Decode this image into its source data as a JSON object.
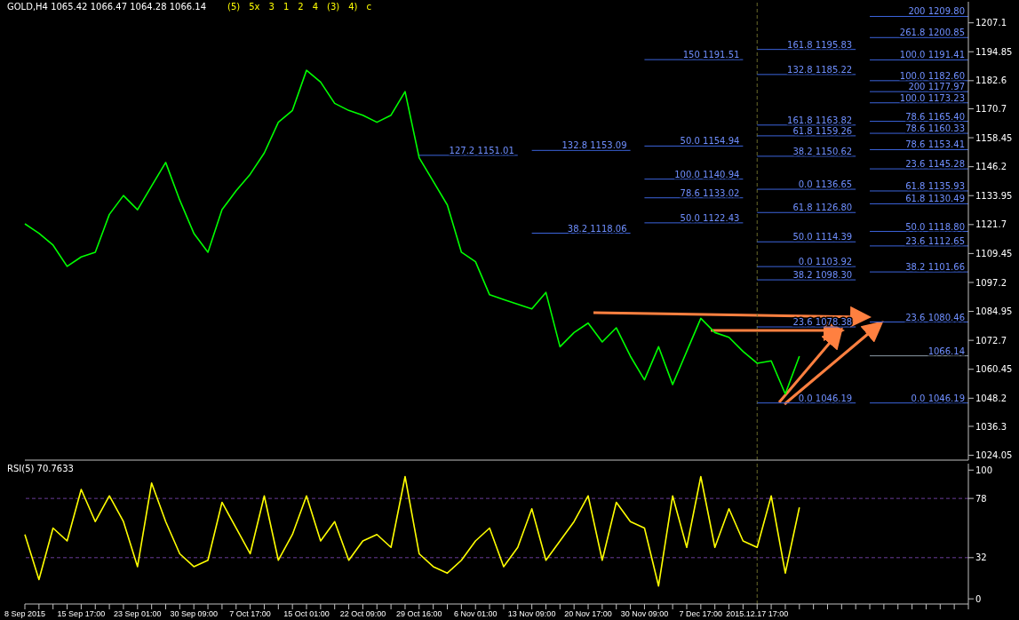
{
  "chart_data": [
    {
      "type": "line",
      "title": "GOLD,H4 1065.42 1066.47 1064.28 1066.14",
      "categories": [
        "8 Sep 2015",
        null,
        null,
        null,
        "15 Sep 17:00",
        null,
        null,
        null,
        "23 Sep 01:00",
        null,
        null,
        null,
        "30 Sep 09:00",
        null,
        null,
        null,
        "7 Oct 17:00",
        null,
        null,
        null,
        "15 Oct 01:00",
        null,
        null,
        null,
        "22 Oct 09:00",
        null,
        null,
        null,
        "29 Oct 16:00",
        null,
        null,
        null,
        "6 Nov 01:00",
        null,
        null,
        null,
        "13 Nov 09:00",
        null,
        null,
        null,
        "20 Nov 17:00",
        null,
        null,
        null,
        "30 Nov 09:00",
        null,
        null,
        null,
        "7 Dec 17:00",
        null,
        null,
        null,
        "2015.12.17 17:00",
        null,
        null,
        null,
        null,
        null,
        null,
        null,
        null,
        null,
        null,
        null,
        null,
        null,
        null,
        null
      ],
      "series": [
        {
          "color": "#00ff00",
          "values": [
            1122,
            1118,
            1113,
            1104,
            1108,
            1110,
            1126,
            1134,
            1128,
            1138,
            1148,
            1132,
            1118,
            1110,
            1128,
            1136,
            1143,
            1152,
            1165,
            1170,
            1187,
            1182,
            1173,
            1170,
            1168,
            1165,
            1168,
            1178,
            1150,
            1140,
            1130,
            1110,
            1106,
            1092,
            1090,
            1088,
            1086,
            1093,
            1070,
            1076,
            1080,
            1072,
            1078,
            1066,
            1056,
            1070,
            1054,
            1068,
            1082,
            1076,
            1074,
            1068,
            1063,
            1064,
            1050,
            1066,
            null,
            null,
            null,
            null,
            null,
            null,
            null,
            null,
            null,
            null,
            null,
            null
          ]
        }
      ],
      "ylim": [
        1022,
        1216
      ],
      "yticks": [
        1024.05,
        1036.3,
        1048.2,
        1060.45,
        1072.7,
        1084.95,
        1097.2,
        1109.45,
        1121.7,
        1133.95,
        1146.2,
        1158.45,
        1170.7,
        1182.6,
        1194.85,
        1207.1
      ],
      "tick_labels": "y",
      "ref_lines": [
        {
          "axis": "y",
          "value": 1066.14,
          "label": "1066.14",
          "color": "#8c9aa6"
        },
        {
          "axis": "x",
          "value": "2015.12.17 17:00",
          "color": "#6b6b2a",
          "line_style": "dashed"
        },
        {
          "axis": "y",
          "value": 1191.41,
          "label": "100.0 1191.41",
          "color": "#3c64dc"
        },
        {
          "axis": "y",
          "value": 1160.33,
          "label": "78.6 1160.33",
          "color": "#3c64dc"
        },
        {
          "axis": "y",
          "value": 1135.93,
          "label": "61.8 1135.93",
          "color": "#3c64dc"
        },
        {
          "axis": "y",
          "value": 1118.8,
          "label": "50.0 1118.80",
          "color": "#3c64dc"
        },
        {
          "axis": "y",
          "value": 1101.66,
          "label": "38.2 1101.66",
          "color": "#3c64dc"
        },
        {
          "axis": "y",
          "value": 1080.46,
          "label": "23.6 1080.46",
          "color": "#3c64dc"
        },
        {
          "axis": "y",
          "value": 1046.19,
          "label": "0.0 1046.19",
          "color": "#3c64dc"
        },
        {
          "axis": "y",
          "value": 1182.6,
          "label": "100.0 1182.60",
          "color": "#3c64dc"
        },
        {
          "axis": "y",
          "value": 1153.41,
          "label": "78.6 1153.41",
          "color": "#3c64dc"
        },
        {
          "axis": "y",
          "value": 1130.49,
          "label": "61.8 1130.49",
          "color": "#3c64dc"
        },
        {
          "axis": "y",
          "value": 1114.39,
          "label": "50.0 1114.39",
          "color": "#3c64dc"
        },
        {
          "axis": "y",
          "value": 1098.3,
          "label": "38.2 1098.30",
          "color": "#3c64dc"
        },
        {
          "axis": "y",
          "value": 1078.38,
          "label": "23.6 1078.38",
          "color": "#3c64dc"
        },
        {
          "axis": "y",
          "value": 1209.8,
          "label": "200 1209.80",
          "color": "#3c64dc"
        },
        {
          "axis": "y",
          "value": 1195.83,
          "label": "161.8 1195.83",
          "color": "#3c64dc"
        },
        {
          "axis": "y",
          "value": 1185.22,
          "label": "132.8 1185.22",
          "color": "#3c64dc"
        },
        {
          "axis": "y",
          "value": 1173.23,
          "label": "100.0 1173.23",
          "color": "#3c64dc"
        },
        {
          "axis": "y",
          "value": 1165.4,
          "label": "78.6 1165.40",
          "color": "#3c64dc"
        },
        {
          "axis": "y",
          "value": 1159.26,
          "label": "61.8 1159.26",
          "color": "#3c64dc"
        },
        {
          "axis": "y",
          "value": 1154.94,
          "label": "50.0 1154.94",
          "color": "#3c64dc"
        },
        {
          "axis": "y",
          "value": 1150.62,
          "label": "38.2 1150.62",
          "color": "#3c64dc"
        },
        {
          "axis": "y",
          "value": 1145.28,
          "label": "23.6 1145.28",
          "color": "#3c64dc"
        },
        {
          "axis": "y",
          "value": 1136.65,
          "label": "0.0 1136.65",
          "color": "#3c64dc"
        },
        {
          "axis": "y",
          "value": 1200.85,
          "label": "261.8 1200.85",
          "color": "#3c64dc"
        },
        {
          "axis": "y",
          "value": 1177.97,
          "label": "200 1177.97",
          "color": "#3c64dc"
        },
        {
          "axis": "y",
          "value": 1163.82,
          "label": "161.8 1163.82",
          "color": "#3c64dc"
        },
        {
          "axis": "y",
          "value": 1153.09,
          "label": "132.8 1153.09",
          "color": "#3c64dc"
        },
        {
          "axis": "y",
          "value": 1151.01,
          "label": "127.2 1151.01",
          "color": "#3c64dc"
        },
        {
          "axis": "y",
          "value": 1140.94,
          "label": "100.0 1140.94",
          "color": "#3c64dc"
        },
        {
          "axis": "y",
          "value": 1133.02,
          "label": "78.6 1133.02",
          "color": "#3c64dc"
        },
        {
          "axis": "y",
          "value": 1126.8,
          "label": "61.8 1126.80",
          "color": "#3c64dc"
        },
        {
          "axis": "y",
          "value": 1122.43,
          "label": "50.0 1122.43",
          "color": "#3c64dc"
        },
        {
          "axis": "y",
          "value": 1118.06,
          "label": "38.2 1118.06",
          "color": "#3c64dc"
        },
        {
          "axis": "y",
          "value": 1112.65,
          "label": "23.6 1112.65",
          "color": "#3c64dc"
        },
        {
          "axis": "y",
          "value": 1103.92,
          "label": "0.0 1103.92",
          "color": "#3c64dc"
        }
      ],
      "annotations": [
        "(5)",
        "5x",
        "3",
        "1",
        "2",
        "4",
        "(3)",
        "4)",
        "c",
        {
          "text": "0.0 1046.19",
          "y": 1046.19
        },
        {
          "text": "150 1191.51",
          "y": 1191.51
        }
      ]
    },
    {
      "type": "line",
      "title": "RSI(5) 70.7633",
      "categories": [
        "8 Sep 2015",
        null,
        null,
        null,
        "15 Sep 17:00",
        null,
        null,
        null,
        "23 Sep 01:00",
        null,
        null,
        null,
        "30 Sep 09:00",
        null,
        null,
        null,
        "7 Oct 17:00",
        null,
        null,
        null,
        "15 Oct 01:00",
        null,
        null,
        null,
        "22 Oct 09:00",
        null,
        null,
        null,
        "29 Oct 16:00",
        null,
        null,
        null,
        "6 Nov 01:00",
        null,
        null,
        null,
        "13 Nov 09:00",
        null,
        null,
        null,
        "20 Nov 17:00",
        null,
        null,
        null,
        "30 Nov 09:00",
        null,
        null,
        null,
        "7 Dec 17:00",
        null,
        null,
        null,
        "2015.12.17 17:00",
        null,
        null,
        null,
        null,
        null,
        null,
        null,
        null,
        null,
        null,
        null,
        null,
        null,
        null,
        null
      ],
      "series": [
        {
          "color": "#ffff00",
          "values": [
            50,
            15,
            55,
            45,
            85,
            60,
            80,
            60,
            25,
            90,
            60,
            35,
            25,
            30,
            75,
            55,
            35,
            80,
            30,
            50,
            80,
            45,
            60,
            30,
            45,
            50,
            40,
            95,
            35,
            25,
            20,
            30,
            45,
            55,
            25,
            40,
            70,
            30,
            45,
            60,
            80,
            30,
            75,
            60,
            55,
            10,
            80,
            40,
            95,
            40,
            70,
            45,
            40,
            80,
            20,
            71,
            null,
            null,
            null,
            null,
            null,
            null,
            null,
            null,
            null,
            null,
            null,
            null
          ]
        }
      ],
      "ylim": [
        -4,
        105
      ],
      "yticks": [
        0,
        32,
        78,
        100
      ],
      "ref_lines": [
        {
          "axis": "y",
          "value": 78,
          "color": "#6a3d9a",
          "line_style": "dashed"
        },
        {
          "axis": "y",
          "value": 32,
          "color": "#6a3d9a",
          "line_style": "dashed"
        },
        {
          "axis": "x",
          "value": "2015.12.17 17:00",
          "color": "#6b6b2a",
          "line_style": "dashed"
        }
      ]
    }
  ]
}
